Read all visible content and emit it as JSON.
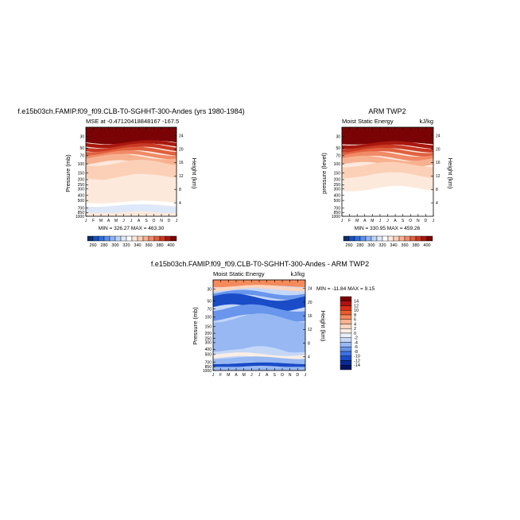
{
  "top_left": {
    "title": "f.e15b03ch.FAMIP.f09_f09.CLB-T0-SGHHT-300-Andes (yrs 1980-1984)",
    "subtitle": "MSE at -0.47120418848167  -167.5",
    "ylabel": "Pressure (mb)",
    "ylabel_right": "Height (km)",
    "minmax": "MIN = 326.27  MAX = 463.30"
  },
  "top_right": {
    "title": "ARM TWP2",
    "subtitle": "Moist Static Energy",
    "units": "kJ/kg",
    "ylabel": "pressure (level)",
    "ylabel_right": "Height (km)",
    "minmax": "MIN = 330.95  MAX = 459.26"
  },
  "bottom": {
    "title": "f.e15b03ch.FAMIP.f09_f09.CLB-T0-SGHHT-300-Andes - ARM TWP2",
    "subtitle": "Moist Static Energy",
    "units": "kJ/kg",
    "ylabel": "Pressure (mb)",
    "ylabel_right": "Height (km)",
    "minmax": "MIN = -11.84  MAX =   9.15"
  },
  "chart_data": [
    {
      "type": "heatmap",
      "title": "f.e15b03ch.FAMIP.f09_f09.CLB-T0-SGHHT-300-Andes (yrs 1980-1984)",
      "subtitle": "MSE at -0.47120418848167  -167.5",
      "x": [
        "J",
        "F",
        "M",
        "A",
        "M",
        "J",
        "J",
        "A",
        "S",
        "O",
        "N",
        "D",
        "J"
      ],
      "xlabel": "",
      "ylabel": "Pressure (mb)",
      "ylabel_right": "Height (km)",
      "y_ticks": [
        "30",
        "50",
        "70",
        "100",
        "150",
        "200",
        "250",
        "300",
        "400",
        "500",
        "700",
        "850",
        "1000"
      ],
      "y_right_ticks": [
        "4",
        "8",
        "12",
        "16",
        "20",
        "24"
      ],
      "colorbar_ticks": [
        "260",
        "280",
        "300",
        "320",
        "340",
        "360",
        "380",
        "400"
      ],
      "min": 326.27,
      "max": 463.3
    },
    {
      "type": "heatmap",
      "title": "ARM TWP2",
      "subtitle": "Moist Static Energy",
      "units": "kJ/kg",
      "x": [
        "J",
        "F",
        "M",
        "A",
        "M",
        "J",
        "J",
        "A",
        "S",
        "O",
        "N",
        "D",
        "J"
      ],
      "ylabel": "pressure (level)",
      "ylabel_right": "Height (km)",
      "y_ticks": [
        "30",
        "50",
        "70",
        "100",
        "150",
        "200",
        "250",
        "300",
        "400",
        "500",
        "700",
        "850",
        "1000"
      ],
      "y_right_ticks": [
        "4",
        "8",
        "12",
        "16",
        "20",
        "24"
      ],
      "colorbar_ticks": [
        "260",
        "280",
        "300",
        "320",
        "340",
        "360",
        "380",
        "400"
      ],
      "min": 330.95,
      "max": 459.26
    },
    {
      "type": "heatmap",
      "title": "f.e15b03ch.FAMIP.f09_f09.CLB-T0-SGHHT-300-Andes - ARM TWP2",
      "subtitle": "Moist Static Energy",
      "units": "kJ/kg",
      "x": [
        "J",
        "F",
        "M",
        "A",
        "M",
        "J",
        "J",
        "A",
        "S",
        "O",
        "N",
        "D",
        "J"
      ],
      "ylabel": "Pressure (mb)",
      "ylabel_right": "Height (km)",
      "y_ticks": [
        "30",
        "50",
        "70",
        "100",
        "150",
        "200",
        "250",
        "300",
        "400",
        "500",
        "700",
        "850",
        "1000"
      ],
      "y_right_ticks": [
        "4",
        "8",
        "12",
        "16",
        "20",
        "24"
      ],
      "colorbar_levels": [
        "14",
        "12",
        "10",
        "8",
        "6",
        "4",
        "2",
        "0",
        "-2",
        "-4",
        "-6",
        "-8",
        "-10",
        "-12",
        "-14"
      ],
      "min": -11.84,
      "max": 9.15
    }
  ],
  "colors": {
    "mse_scale": [
      "#08306b",
      "#1a4fbf",
      "#2e6fdb",
      "#5b8ff0",
      "#8db2f5",
      "#bcd3f8",
      "#dde9fb",
      "#ffffff",
      "#fde9dc",
      "#fbd0b6",
      "#f8b190",
      "#f08a67",
      "#e0603f",
      "#c93a24",
      "#a8170f",
      "#7a0405"
    ],
    "diff_scale": [
      "#7a0000",
      "#b01212",
      "#d63018",
      "#ec5a2e",
      "#f48a5a",
      "#f8b392",
      "#fbd4bf",
      "#fdeee4",
      "#e9f0fb",
      "#c4d7f7",
      "#97b8f2",
      "#6996ec",
      "#3d71e2",
      "#1a4cc7",
      "#0a2a96",
      "#031566"
    ]
  }
}
